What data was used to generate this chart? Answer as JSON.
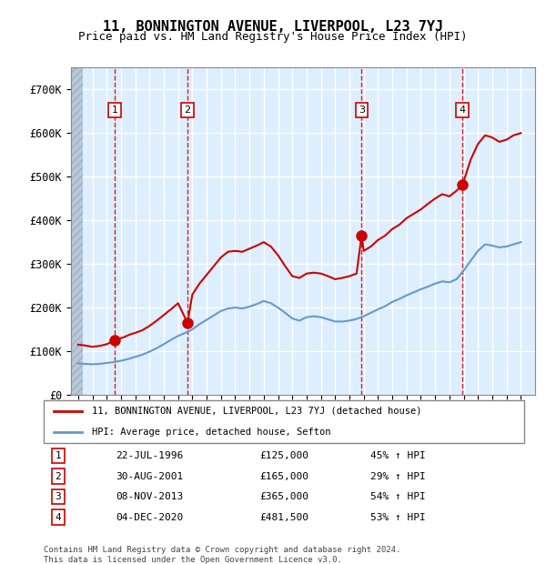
{
  "title": "11, BONNINGTON AVENUE, LIVERPOOL, L23 7YJ",
  "subtitle": "Price paid vs. HM Land Registry's House Price Index (HPI)",
  "xlabel": "",
  "ylabel": "",
  "ylim": [
    0,
    750000
  ],
  "yticks": [
    0,
    100000,
    200000,
    300000,
    400000,
    500000,
    600000,
    700000
  ],
  "ytick_labels": [
    "£0",
    "£100K",
    "£200K",
    "£300K",
    "£400K",
    "£500K",
    "£600K",
    "£700K"
  ],
  "xlim_start": 1993.5,
  "xlim_end": 2026.0,
  "bg_color": "#ffffff",
  "plot_bg_color": "#ddeeff",
  "hatch_color": "#c0c8d8",
  "grid_color": "#ffffff",
  "red_line_color": "#cc0000",
  "blue_line_color": "#6699cc",
  "sale_marker_color": "#cc0000",
  "dashed_line_color": "#cc0000",
  "transactions": [
    {
      "num": 1,
      "year": 1996.55,
      "price": 125000,
      "date": "22-JUL-1996",
      "pct": "45% ↑ HPI"
    },
    {
      "num": 2,
      "year": 2001.66,
      "price": 165000,
      "date": "30-AUG-2001",
      "pct": "29% ↑ HPI"
    },
    {
      "num": 3,
      "year": 2013.85,
      "price": 365000,
      "date": "08-NOV-2013",
      "pct": "54% ↑ HPI"
    },
    {
      "num": 4,
      "year": 2020.92,
      "price": 481500,
      "date": "04-DEC-2020",
      "pct": "53% ↑ HPI"
    }
  ],
  "legend_label_red": "11, BONNINGTON AVENUE, LIVERPOOL, L23 7YJ (detached house)",
  "legend_label_blue": "HPI: Average price, detached house, Sefton",
  "footer": "Contains HM Land Registry data © Crown copyright and database right 2024.\nThis data is licensed under the Open Government Licence v3.0.",
  "hpi_red_data": {
    "x": [
      1994.0,
      1994.5,
      1995.0,
      1995.5,
      1996.0,
      1996.55,
      1996.8,
      1997.2,
      1997.6,
      1998.0,
      1998.5,
      1999.0,
      1999.5,
      2000.0,
      2000.5,
      2001.0,
      2001.66,
      2002.0,
      2002.5,
      2003.0,
      2003.5,
      2004.0,
      2004.5,
      2005.0,
      2005.5,
      2006.0,
      2006.5,
      2007.0,
      2007.5,
      2008.0,
      2008.5,
      2009.0,
      2009.5,
      2010.0,
      2010.5,
      2011.0,
      2011.5,
      2012.0,
      2012.5,
      2013.0,
      2013.5,
      2013.85,
      2014.0,
      2014.5,
      2015.0,
      2015.5,
      2016.0,
      2016.5,
      2017.0,
      2017.5,
      2018.0,
      2018.5,
      2019.0,
      2019.5,
      2020.0,
      2020.5,
      2020.92,
      2021.2,
      2021.5,
      2022.0,
      2022.5,
      2023.0,
      2023.5,
      2024.0,
      2024.5,
      2025.0
    ],
    "y": [
      115000,
      113000,
      110000,
      112000,
      116000,
      125000,
      128000,
      132000,
      138000,
      142000,
      148000,
      158000,
      170000,
      183000,
      196000,
      210000,
      165000,
      230000,
      255000,
      275000,
      295000,
      315000,
      328000,
      330000,
      328000,
      335000,
      342000,
      350000,
      340000,
      320000,
      295000,
      272000,
      268000,
      278000,
      280000,
      278000,
      272000,
      265000,
      268000,
      272000,
      278000,
      365000,
      330000,
      340000,
      355000,
      365000,
      380000,
      390000,
      405000,
      415000,
      425000,
      438000,
      450000,
      460000,
      455000,
      468000,
      481500,
      510000,
      540000,
      575000,
      595000,
      590000,
      580000,
      585000,
      595000,
      600000
    ]
  },
  "hpi_blue_data": {
    "x": [
      1994.0,
      1994.5,
      1995.0,
      1995.5,
      1996.0,
      1996.5,
      1997.0,
      1997.5,
      1998.0,
      1998.5,
      1999.0,
      1999.5,
      2000.0,
      2000.5,
      2001.0,
      2001.5,
      2002.0,
      2002.5,
      2003.0,
      2003.5,
      2004.0,
      2004.5,
      2005.0,
      2005.5,
      2006.0,
      2006.5,
      2007.0,
      2007.5,
      2008.0,
      2008.5,
      2009.0,
      2009.5,
      2010.0,
      2010.5,
      2011.0,
      2011.5,
      2012.0,
      2012.5,
      2013.0,
      2013.5,
      2014.0,
      2014.5,
      2015.0,
      2015.5,
      2016.0,
      2016.5,
      2017.0,
      2017.5,
      2018.0,
      2018.5,
      2019.0,
      2019.5,
      2020.0,
      2020.5,
      2021.0,
      2021.5,
      2022.0,
      2022.5,
      2023.0,
      2023.5,
      2024.0,
      2024.5,
      2025.0
    ],
    "x_end": 2025.5,
    "y": [
      72000,
      71000,
      70000,
      71000,
      73000,
      75000,
      78000,
      82000,
      87000,
      92000,
      99000,
      107000,
      116000,
      126000,
      135000,
      142000,
      150000,
      162000,
      172000,
      182000,
      192000,
      198000,
      200000,
      198000,
      202000,
      208000,
      215000,
      210000,
      200000,
      188000,
      175000,
      170000,
      178000,
      180000,
      178000,
      173000,
      168000,
      168000,
      170000,
      174000,
      180000,
      188000,
      196000,
      203000,
      213000,
      220000,
      228000,
      235000,
      242000,
      248000,
      255000,
      260000,
      258000,
      265000,
      285000,
      308000,
      330000,
      345000,
      342000,
      338000,
      340000,
      345000,
      350000
    ]
  }
}
